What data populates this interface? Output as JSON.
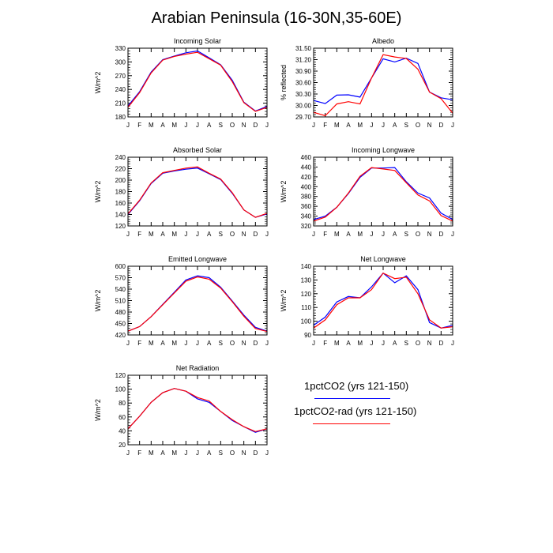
{
  "page": {
    "title": "Arabian Peninsula (16-30N,35-60E)"
  },
  "legend": {
    "items": [
      {
        "label": "1pctCO2 (yrs 121-150)",
        "color": "#0000ff"
      },
      {
        "label": "1pctCO2-rad (yrs 121-150)",
        "color": "#ff0000"
      }
    ]
  },
  "chart_data": [
    {
      "type": "line",
      "title": "Incoming Solar",
      "ylabel": "W/m^2",
      "categories": [
        "J",
        "F",
        "M",
        "A",
        "M",
        "J",
        "J",
        "A",
        "S",
        "O",
        "N",
        "D",
        "J"
      ],
      "ylim": [
        180,
        330
      ],
      "yticks": [
        180,
        210,
        240,
        270,
        300,
        330
      ],
      "ytick_decimals": 0,
      "series": [
        {
          "color": "#0000ff",
          "values": [
            204,
            235,
            278,
            305,
            313,
            320,
            324,
            309,
            294,
            260,
            212,
            193,
            203
          ]
        },
        {
          "color": "#ff0000",
          "values": [
            201,
            233,
            276,
            304,
            312,
            317,
            321,
            307,
            293,
            257,
            211,
            192,
            201
          ]
        }
      ]
    },
    {
      "type": "line",
      "title": "Albedo",
      "ylabel": "% reflected",
      "categories": [
        "J",
        "F",
        "M",
        "A",
        "M",
        "J",
        "J",
        "A",
        "S",
        "O",
        "N",
        "D",
        "J"
      ],
      "ylim": [
        29.7,
        31.5
      ],
      "yticks": [
        29.7,
        30.0,
        30.3,
        30.6,
        30.9,
        31.2,
        31.5
      ],
      "ytick_decimals": 2,
      "series": [
        {
          "color": "#0000ff",
          "values": [
            30.13,
            30.05,
            30.27,
            30.28,
            30.22,
            30.72,
            31.22,
            31.14,
            31.24,
            31.1,
            30.35,
            30.2,
            30.15
          ]
        },
        {
          "color": "#ff0000",
          "values": [
            29.82,
            29.73,
            30.04,
            30.1,
            30.04,
            30.72,
            31.33,
            31.27,
            31.23,
            30.95,
            30.35,
            30.18,
            29.8
          ]
        }
      ]
    },
    {
      "type": "line",
      "title": "Absorbed Solar",
      "ylabel": "W/m^2",
      "categories": [
        "J",
        "F",
        "M",
        "A",
        "M",
        "J",
        "J",
        "A",
        "S",
        "O",
        "N",
        "D",
        "J"
      ],
      "ylim": [
        120,
        240
      ],
      "yticks": [
        120,
        140,
        160,
        180,
        200,
        220,
        240
      ],
      "ytick_decimals": 0,
      "series": [
        {
          "color": "#0000ff",
          "values": [
            140,
            164,
            194,
            212,
            216,
            219,
            221,
            211,
            201,
            177,
            148,
            135,
            141
          ]
        },
        {
          "color": "#ff0000",
          "values": [
            141,
            165,
            195,
            213,
            217,
            221,
            223,
            212,
            202,
            178,
            148,
            135,
            142
          ]
        }
      ]
    },
    {
      "type": "line",
      "title": "Incoming Longwave",
      "ylabel": "W/m^2",
      "categories": [
        "J",
        "F",
        "M",
        "A",
        "M",
        "J",
        "J",
        "A",
        "S",
        "O",
        "N",
        "D",
        "J"
      ],
      "ylim": [
        320,
        460
      ],
      "yticks": [
        320,
        340,
        360,
        380,
        400,
        420,
        440,
        460
      ],
      "ytick_decimals": 0,
      "series": [
        {
          "color": "#0000ff",
          "values": [
            333,
            340,
            358,
            386,
            419,
            438,
            438,
            439,
            410,
            387,
            377,
            346,
            333
          ]
        },
        {
          "color": "#ff0000",
          "values": [
            330,
            338,
            358,
            387,
            421,
            439,
            436,
            433,
            408,
            383,
            371,
            341,
            330
          ]
        }
      ]
    },
    {
      "type": "line",
      "title": "Emitted Longwave",
      "ylabel": "W/m^2",
      "categories": [
        "J",
        "F",
        "M",
        "A",
        "M",
        "J",
        "J",
        "A",
        "S",
        "O",
        "N",
        "D",
        "J"
      ],
      "ylim": [
        420,
        600
      ],
      "yticks": [
        420,
        450,
        480,
        510,
        540,
        570,
        600
      ],
      "ytick_decimals": 0,
      "series": [
        {
          "color": "#0000ff",
          "values": [
            430,
            442,
            468,
            500,
            532,
            564,
            575,
            570,
            545,
            509,
            472,
            440,
            430
          ]
        },
        {
          "color": "#ff0000",
          "values": [
            430,
            442,
            468,
            499,
            530,
            561,
            572,
            566,
            543,
            507,
            469,
            437,
            429
          ]
        }
      ]
    },
    {
      "type": "line",
      "title": "Net Longwave",
      "ylabel": "W/m^2",
      "categories": [
        "J",
        "F",
        "M",
        "A",
        "M",
        "J",
        "J",
        "A",
        "S",
        "O",
        "N",
        "D",
        "J"
      ],
      "ylim": [
        90,
        140
      ],
      "yticks": [
        90,
        100,
        110,
        120,
        130,
        140
      ],
      "ytick_decimals": 0,
      "series": [
        {
          "color": "#0000ff",
          "values": [
            97,
            103,
            114,
            118,
            117,
            125,
            135,
            128,
            133,
            123,
            99,
            95,
            97
          ]
        },
        {
          "color": "#ff0000",
          "values": [
            95,
            101,
            112,
            117,
            117,
            123,
            135,
            131,
            132,
            120,
            101,
            95,
            96
          ]
        }
      ]
    },
    {
      "type": "line",
      "title": "Net Radiation",
      "ylabel": "W/m^2",
      "categories": [
        "J",
        "F",
        "M",
        "A",
        "M",
        "J",
        "J",
        "A",
        "S",
        "O",
        "N",
        "D",
        "J"
      ],
      "ylim": [
        20,
        120
      ],
      "yticks": [
        20,
        40,
        60,
        80,
        100,
        120
      ],
      "ytick_decimals": 0,
      "series": [
        {
          "color": "#0000ff",
          "values": [
            43,
            61,
            81,
            95,
            101,
            97,
            86,
            81,
            68,
            55,
            46,
            38,
            43
          ]
        },
        {
          "color": "#ff0000",
          "values": [
            43,
            61,
            81,
            95,
            101,
            97,
            88,
            83,
            68,
            56,
            46,
            39,
            43
          ]
        }
      ]
    }
  ]
}
